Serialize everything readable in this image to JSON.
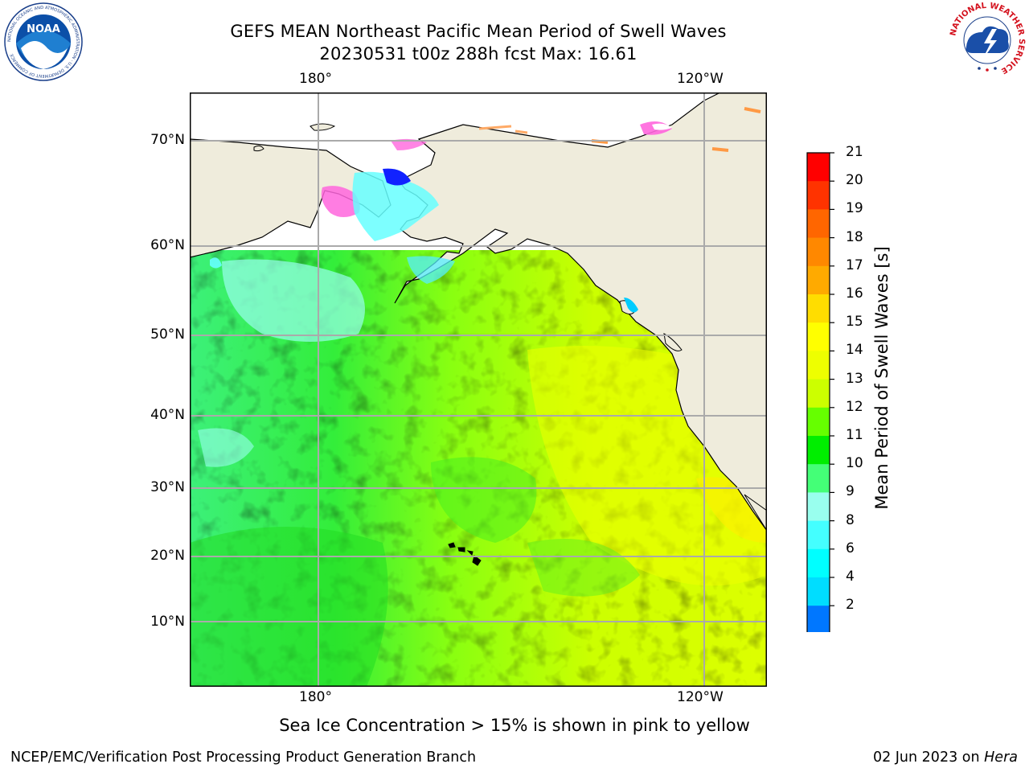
{
  "title_line1": "GEFS MEAN Northeast Pacific Mean Period of Swell Waves",
  "title_line2": "20230531 t00z 288h fcst   Max: 16.61",
  "lon_labels": [
    "180°",
    "120°W"
  ],
  "lat_labels": [
    "70°N",
    "60°N",
    "50°N",
    "40°N",
    "30°N",
    "20°N",
    "10°N"
  ],
  "colorbar": {
    "label": "Mean Period of Swell Waves [s]",
    "ticks": [
      "21",
      "20",
      "19",
      "18",
      "17",
      "16",
      "15",
      "14",
      "13",
      "12",
      "11",
      "10",
      "9",
      "8",
      "6",
      "4",
      "2"
    ],
    "colors": [
      "#ff0000",
      "#ff3300",
      "#ff6600",
      "#ff8800",
      "#ffaa00",
      "#ffdd00",
      "#ffff00",
      "#eeff00",
      "#ccff00",
      "#66ff00",
      "#00ee00",
      "#44ff77",
      "#99ffee",
      "#44ffff",
      "#00ffff",
      "#00ddff",
      "#0077ff"
    ],
    "extend_color": "#0000ee"
  },
  "note": "Sea Ice Concentration > 15% is shown in pink to yellow",
  "footer": {
    "left": "NCEP/EMC/Verification Post Processing Product Generation Branch",
    "date": "02 Jun 2023 on ",
    "host": "Hera"
  },
  "logos": {
    "noaa": {
      "text": "NOAA",
      "ring_text": "NATIONAL OCEANIC AND ATMOSPHERIC ADMINISTRATION · U.S. DEPARTMENT OF COMMERCE"
    },
    "nws": {
      "ring_text": "NATIONAL WEATHER SERVICE"
    }
  }
}
